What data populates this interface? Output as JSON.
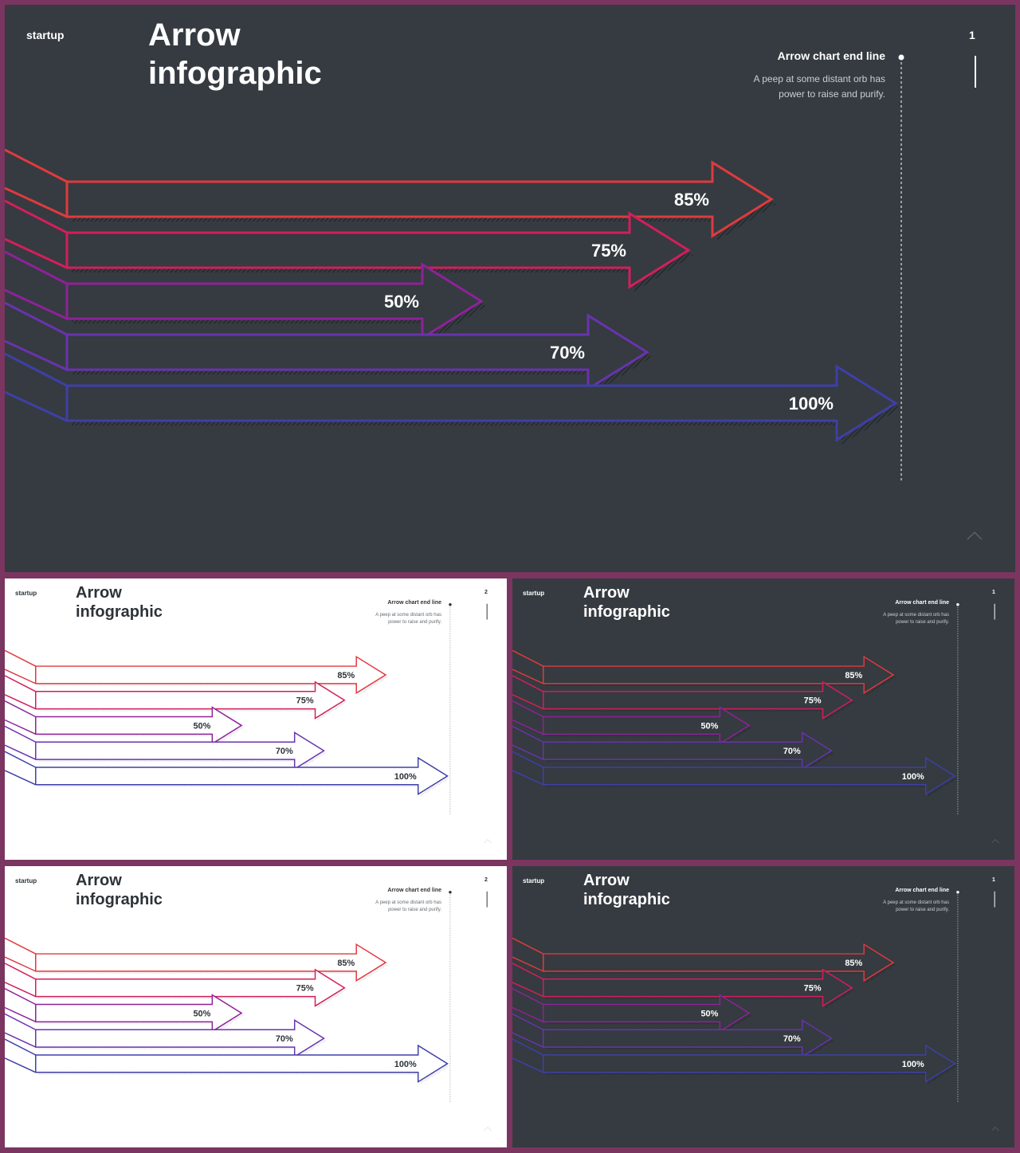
{
  "slides": [
    {
      "variant": "dark",
      "page": "1"
    },
    {
      "variant": "light",
      "page": "2"
    },
    {
      "variant": "dark",
      "page": "1"
    },
    {
      "variant": "light",
      "page": "2"
    },
    {
      "variant": "dark",
      "page": "1"
    }
  ],
  "brand": "startup",
  "title_line1": "Arrow",
  "title_line2": "infographic",
  "end_line": {
    "title": "Arrow chart end line",
    "desc_line1": "A peep at some distant orb has",
    "desc_line2": "power to raise and purify."
  },
  "icons": {
    "scroll_up": "chevron-up-icon"
  },
  "colors": {
    "background_dark": "#353b40",
    "background_light": "#ffffff",
    "frame": "#7a3560"
  },
  "chart_data": {
    "type": "bar",
    "orientation": "horizontal",
    "categories": [
      "",
      "",
      "",
      "",
      ""
    ],
    "values": [
      85,
      75,
      50,
      70,
      100
    ],
    "labels": [
      "85%",
      "75%",
      "50%",
      "70%",
      "100%"
    ],
    "colors": [
      "#e03a3e",
      "#d41e5c",
      "#8e2299",
      "#6a32b0",
      "#3f3fa8"
    ],
    "xlim": [
      0,
      100
    ],
    "title": "",
    "xlabel": "",
    "ylabel": ""
  }
}
